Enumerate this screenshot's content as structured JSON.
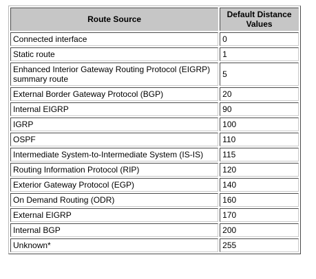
{
  "table": {
    "headers": [
      "Route Source",
      "Default Distance Values"
    ],
    "rows": [
      {
        "source": "Connected interface",
        "value": "0"
      },
      {
        "source": "Static route",
        "value": "1"
      },
      {
        "source": "Enhanced Interior Gateway Routing Protocol (EIGRP) summary route",
        "value": "5"
      },
      {
        "source": "External Border Gateway Protocol (BGP)",
        "value": "20"
      },
      {
        "source": "Internal EIGRP",
        "value": "90"
      },
      {
        "source": "IGRP",
        "value": "100"
      },
      {
        "source": "OSPF",
        "value": "110"
      },
      {
        "source": "Intermediate System-to-Intermediate System (IS-IS)",
        "value": "115"
      },
      {
        "source": "Routing Information Protocol (RIP)",
        "value": "120"
      },
      {
        "source": "Exterior Gateway Protocol (EGP)",
        "value": "140"
      },
      {
        "source": "On Demand Routing (ODR)",
        "value": "160"
      },
      {
        "source": "External EIGRP",
        "value": "170"
      },
      {
        "source": "Internal BGP",
        "value": "200"
      },
      {
        "source": "Unknown*",
        "value": "255"
      }
    ]
  },
  "colors": {
    "header_background": "#c6c6c6",
    "border_dark": "#4a4a4a",
    "border_light": "#c8c8c8"
  }
}
